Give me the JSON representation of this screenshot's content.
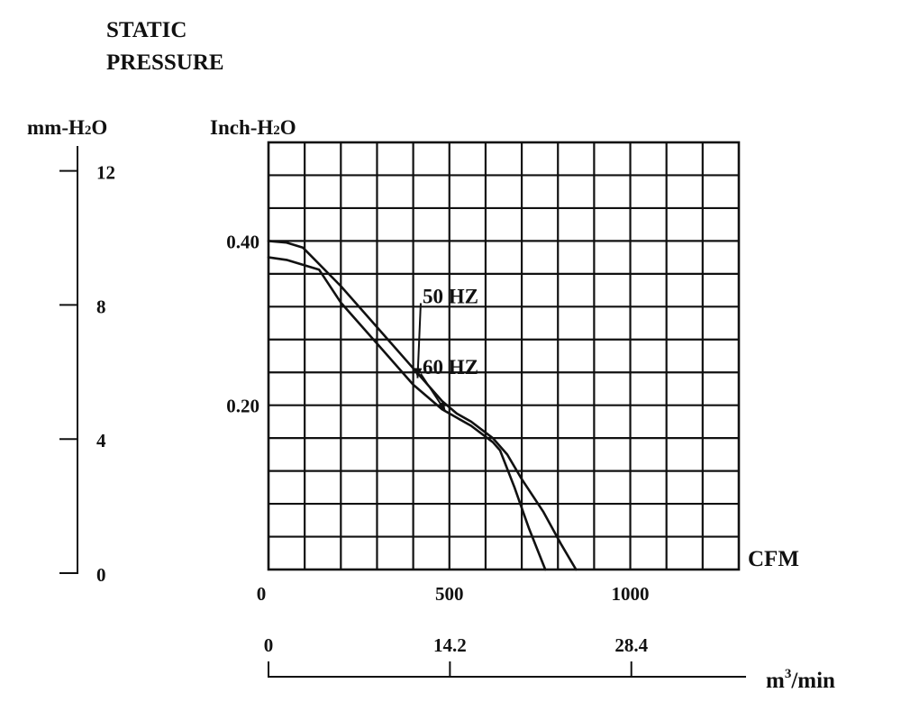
{
  "title_line1": "STATIC",
  "title_line2": "PRESSURE",
  "left_axis": {
    "unit_main": "mm-H",
    "unit_sub": "2",
    "unit_tail": "O",
    "ticks": [
      {
        "value": 12,
        "label": "12"
      },
      {
        "value": 8,
        "label": "8"
      },
      {
        "value": 4,
        "label": "4"
      },
      {
        "value": 0,
        "label": "0"
      }
    ]
  },
  "bottom_axis": {
    "unit_main": "m",
    "unit_sup": "3",
    "unit_tail": "/min",
    "ticks": [
      {
        "value": 0,
        "label": "0"
      },
      {
        "value": 14.2,
        "label": "14.2"
      },
      {
        "value": 28.4,
        "label": "28.4"
      }
    ]
  },
  "chart_data": {
    "type": "line",
    "title": "STATIC PRESSURE",
    "xlabel": "CFM",
    "ylabel": "Inch-H2O",
    "ylabel_parts": {
      "main": "Inch-H",
      "sub": "2",
      "tail": "O"
    },
    "xlim": [
      0,
      1300
    ],
    "ylim": [
      0,
      0.52
    ],
    "grid": true,
    "grid_step": {
      "x": 100,
      "y": 0.04
    },
    "x_ticks": [
      {
        "value": 0,
        "label": "0"
      },
      {
        "value": 500,
        "label": "500"
      },
      {
        "value": 1000,
        "label": "1000"
      }
    ],
    "y_ticks": [
      {
        "value": 0.4,
        "label": "0.40"
      },
      {
        "value": 0.2,
        "label": "0.20"
      }
    ],
    "series": [
      {
        "name": "50 HZ",
        "x": [
          0,
          50,
          95,
          200,
          300,
          400,
          480,
          520,
          560,
          620,
          660,
          700,
          760,
          810,
          850
        ],
        "y": [
          0.4,
          0.398,
          0.392,
          0.345,
          0.295,
          0.245,
          0.205,
          0.19,
          0.18,
          0.16,
          0.14,
          0.11,
          0.07,
          0.03,
          0.0
        ]
      },
      {
        "name": "60 HZ",
        "x": [
          0,
          50,
          140,
          200,
          300,
          400,
          480,
          520,
          560,
          620,
          640,
          680,
          720,
          765
        ],
        "y": [
          0.38,
          0.377,
          0.365,
          0.325,
          0.275,
          0.225,
          0.195,
          0.185,
          0.175,
          0.155,
          0.145,
          0.1,
          0.05,
          0.0
        ]
      }
    ],
    "annotations": [
      {
        "text": "50 HZ",
        "x": 625,
        "y": 0.333,
        "arrow_to": {
          "x": 412,
          "y": 0.233
        }
      },
      {
        "text": "60 HZ",
        "x": 625,
        "y": 0.247,
        "arrow_to": {
          "x": 490,
          "y": 0.192
        }
      }
    ]
  }
}
